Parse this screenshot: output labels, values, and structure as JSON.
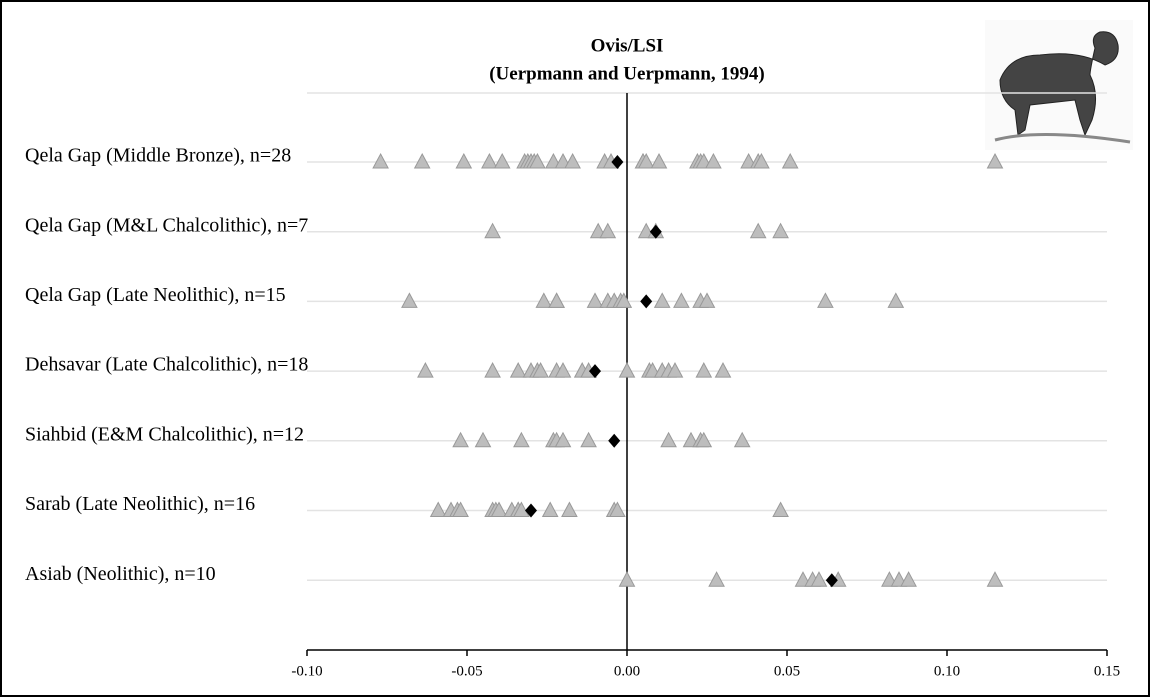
{
  "chart_data": {
    "type": "dot",
    "title": "Ovis/LSI",
    "subtitle": "(Uerpmann and Uerpmann, 1994)",
    "point_color": "#bdbdbd",
    "mean_color": "#000000",
    "xlim": [
      -0.1,
      0.15
    ],
    "xticks": [
      {
        "value": -0.1,
        "label": "-0.10"
      },
      {
        "value": -0.05,
        "label": "-0.05"
      },
      {
        "value": 0,
        "label": "0.00"
      },
      {
        "value": 0.05,
        "label": "0.05"
      },
      {
        "value": 0.1,
        "label": "0.10"
      },
      {
        "value": 0.15,
        "label": "0.15"
      }
    ],
    "rows": [
      {
        "label": "Qela Gap (Middle Bronze), n=28",
        "mean": -0.003,
        "values": [
          -0.077,
          -0.064,
          -0.051,
          -0.043,
          -0.039,
          -0.032,
          -0.031,
          -0.03,
          -0.029,
          -0.028,
          -0.023,
          -0.02,
          -0.017,
          -0.007,
          -0.005,
          0.005,
          0.005,
          0.006,
          0.01,
          0.022,
          0.023,
          0.024,
          0.027,
          0.038,
          0.041,
          0.042,
          0.051,
          0.115
        ]
      },
      {
        "label": "Qela Gap (M&L Chalcolithic), n=7",
        "mean": 0.009,
        "values": [
          -0.042,
          -0.009,
          -0.006,
          0.006,
          0.009,
          0.041,
          0.048
        ]
      },
      {
        "label": "Qela Gap (Late Neolithic), n=15",
        "mean": 0.006,
        "values": [
          -0.068,
          -0.026,
          -0.022,
          -0.022,
          -0.01,
          -0.006,
          -0.004,
          -0.002,
          -0.001,
          0.011,
          0.017,
          0.023,
          0.025,
          0.062,
          0.084
        ]
      },
      {
        "label": "Dehsavar (Late Chalcolithic), n=18",
        "mean": -0.01,
        "values": [
          -0.063,
          -0.042,
          -0.034,
          -0.03,
          -0.028,
          -0.027,
          -0.022,
          -0.02,
          -0.014,
          -0.012,
          0,
          0.007,
          0.008,
          0.011,
          0.013,
          0.015,
          0.024,
          0.03
        ]
      },
      {
        "label": "Siahbid (E&M Chalcolithic), n=12",
        "mean": -0.004,
        "values": [
          -0.052,
          -0.045,
          -0.033,
          -0.023,
          -0.022,
          -0.02,
          -0.012,
          0.013,
          0.02,
          0.023,
          0.024,
          0.036
        ]
      },
      {
        "label": "Sarab (Late Neolithic), n=16",
        "mean": -0.03,
        "values": [
          -0.059,
          -0.055,
          -0.053,
          -0.052,
          -0.042,
          -0.041,
          -0.04,
          -0.036,
          -0.034,
          -0.034,
          -0.033,
          -0.024,
          -0.018,
          -0.004,
          -0.003,
          0.048
        ]
      },
      {
        "label": "Asiab (Neolithic), n=10",
        "mean": 0.064,
        "values": [
          0,
          0.028,
          0.055,
          0.058,
          0.06,
          0.066,
          0.082,
          0.085,
          0.088,
          0.115
        ]
      }
    ]
  }
}
